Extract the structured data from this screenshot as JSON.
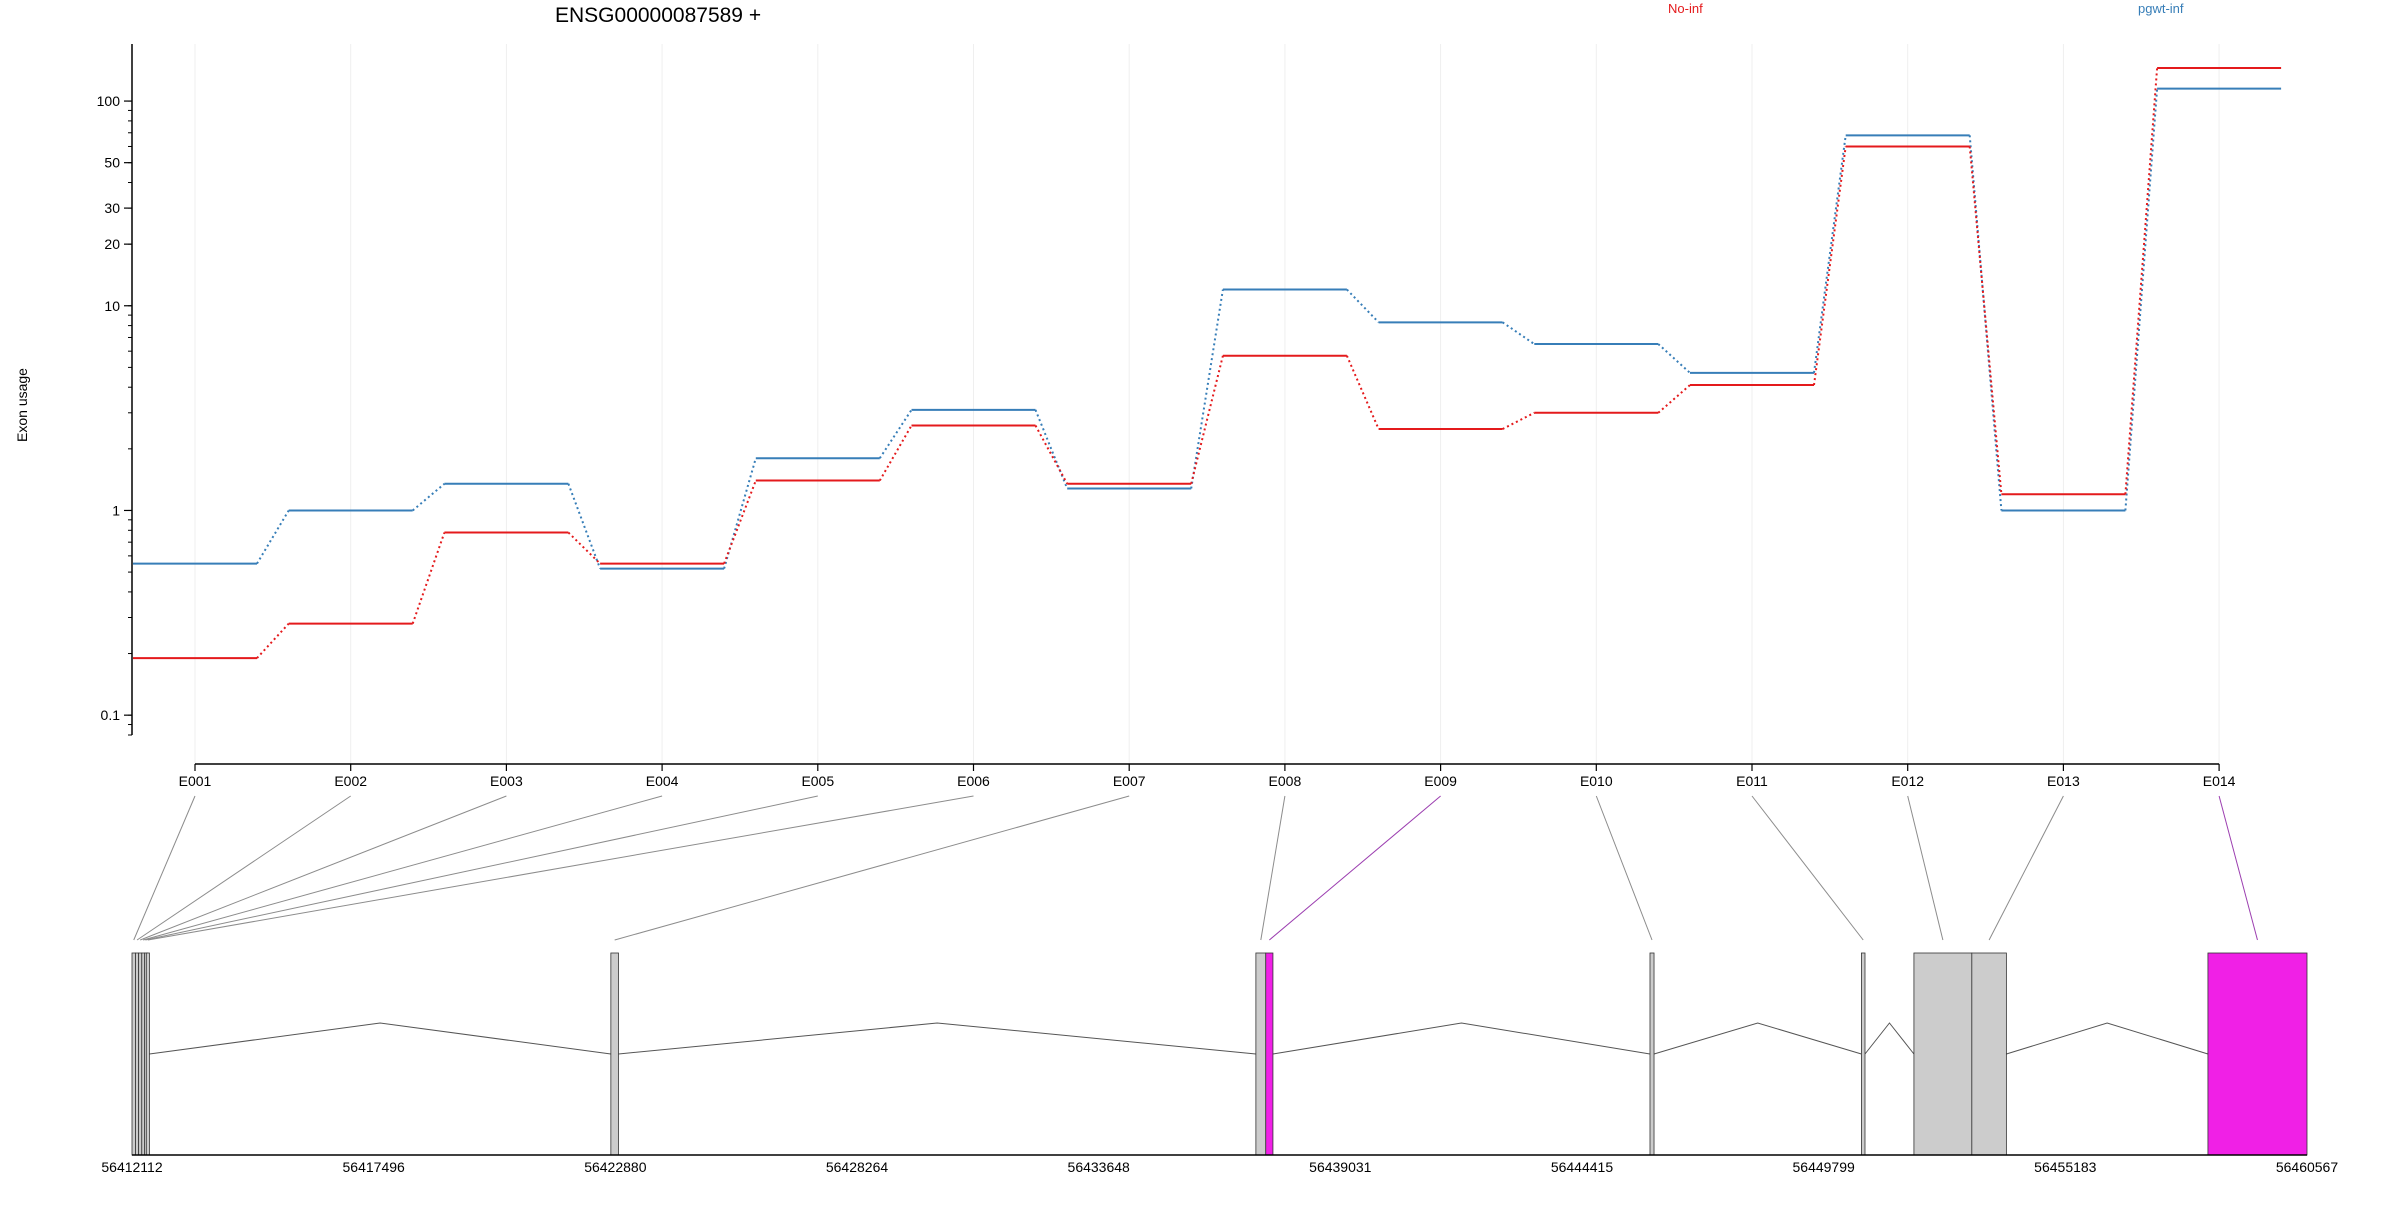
{
  "chart_data": {
    "type": "line",
    "title": "ENSG00000087589 +",
    "ylabel": "Exon usage",
    "xlabel": "",
    "y_scale": "log",
    "ylim": [
      0.08,
      190
    ],
    "y_ticks": [
      0.1,
      1,
      10,
      20,
      30,
      50,
      100
    ],
    "y_tick_labels": [
      "0.1",
      "1",
      "10",
      "20",
      "30",
      "50",
      "100"
    ],
    "grid": "vertical, light",
    "legend_placement": "top-right",
    "categories": [
      "E001",
      "E002",
      "E003",
      "E004",
      "E005",
      "E006",
      "E007",
      "E008",
      "E009",
      "E010",
      "E011",
      "E012",
      "E013",
      "E014"
    ],
    "series": [
      {
        "name": "No-inf",
        "color": "#e41a1c",
        "values": [
          0.19,
          0.28,
          0.78,
          0.55,
          1.4,
          2.6,
          1.35,
          5.7,
          2.5,
          3.0,
          4.1,
          60,
          1.2,
          145
        ]
      },
      {
        "name": "pgwt-inf",
        "color": "#377eb8",
        "values": [
          0.55,
          1.0,
          1.35,
          0.52,
          1.8,
          3.1,
          1.28,
          12,
          8.3,
          6.5,
          4.7,
          68,
          1.0,
          115
        ]
      }
    ],
    "gene_model": {
      "coordinate_ticks": [
        "56412112",
        "56417496",
        "56422880",
        "56428264",
        "56433648",
        "56439031",
        "56444415",
        "56449799",
        "56455183",
        "56460567"
      ],
      "coord_range": [
        56412112,
        56460567
      ],
      "exons": [
        {
          "id": "E001",
          "start": 56412112,
          "end": 56412190,
          "color": "#cccccc"
        },
        {
          "id": "E002",
          "start": 56412190,
          "end": 56412260,
          "color": "#cccccc"
        },
        {
          "id": "E003",
          "start": 56412260,
          "end": 56412330,
          "color": "#cccccc"
        },
        {
          "id": "E004",
          "start": 56412330,
          "end": 56412390,
          "color": "#cccccc"
        },
        {
          "id": "E005",
          "start": 56412390,
          "end": 56412430,
          "color": "#cccccc"
        },
        {
          "id": "E006",
          "start": 56412430,
          "end": 56412500,
          "color": "#cccccc"
        },
        {
          "id": "E007",
          "start": 56422780,
          "end": 56422950,
          "color": "#cccccc"
        },
        {
          "id": "E008",
          "start": 56437150,
          "end": 56437370,
          "color": "#cccccc"
        },
        {
          "id": "E009",
          "start": 56437370,
          "end": 56437530,
          "color": "#f020e6"
        },
        {
          "id": "E010",
          "start": 56445930,
          "end": 56446020,
          "color": "#cccccc"
        },
        {
          "id": "E011",
          "start": 56450640,
          "end": 56450720,
          "color": "#cccccc"
        },
        {
          "id": "E012",
          "start": 56451810,
          "end": 56453100,
          "color": "#cccccc"
        },
        {
          "id": "E013",
          "start": 56453100,
          "end": 56453870,
          "color": "#cccccc"
        },
        {
          "id": "E014",
          "start": 56458360,
          "end": 56460567,
          "color": "#f020e6"
        }
      ],
      "highlight_color": "#f020e6",
      "connector_color": "#8c8c8c",
      "highlight_connector_color": "#9c3fb0"
    }
  }
}
